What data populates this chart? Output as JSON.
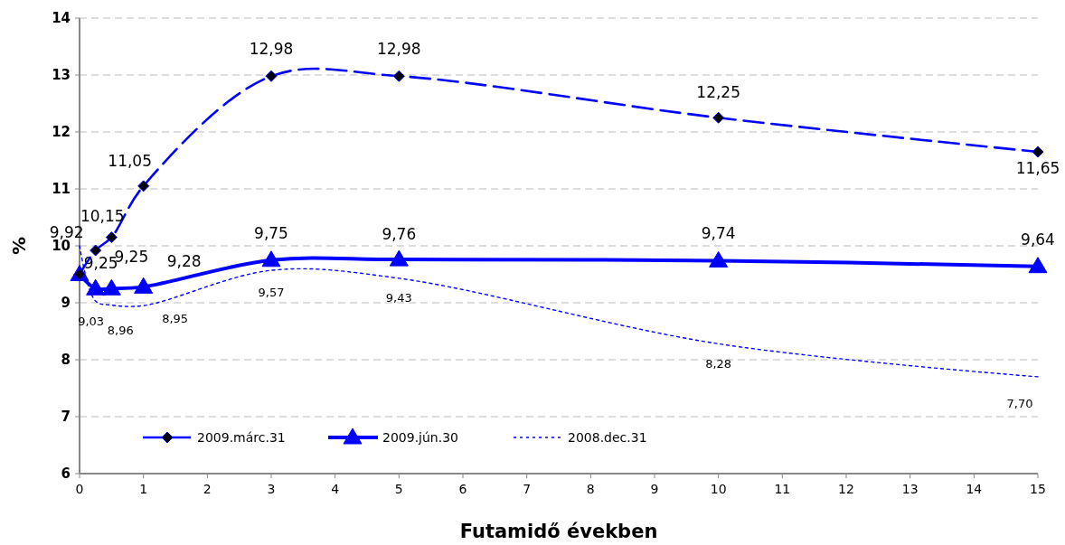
{
  "chart_data": {
    "type": "line",
    "xlabel": "Futamidő években",
    "ylabel": "%",
    "x": [
      0,
      0.25,
      0.5,
      1,
      3,
      5,
      10,
      15
    ],
    "xlim": [
      0,
      15
    ],
    "xticks": [
      0,
      1,
      2,
      3,
      4,
      5,
      6,
      7,
      8,
      9,
      10,
      11,
      12,
      13,
      14,
      15
    ],
    "ylim": [
      6,
      14
    ],
    "yticks": [
      6,
      7,
      8,
      9,
      10,
      11,
      12,
      13,
      14
    ],
    "grid": "y",
    "legend": "bottom left",
    "series": [
      {
        "name": "2009.márc.31",
        "color": "#0000ff",
        "marker": "diamond",
        "line_style": "dashed",
        "values": [
          9.5,
          9.92,
          10.15,
          11.05,
          12.98,
          12.98,
          12.25,
          11.65
        ],
        "value_labels": [
          null,
          "9,92",
          "10,15",
          "11,05",
          "12,98",
          "12,98",
          "12,25",
          "11,65"
        ]
      },
      {
        "name": "2009.jún.30",
        "color": "#0000ff",
        "marker": "triangle",
        "line_style": "solid",
        "values": [
          9.5,
          9.25,
          9.25,
          9.28,
          9.75,
          9.76,
          9.74,
          9.64
        ],
        "value_labels": [
          null,
          "9,25",
          "9,25",
          "9,28",
          "9,75",
          "9,76",
          "9,74",
          "9,64"
        ]
      },
      {
        "name": "2008.dec.31",
        "color": "#0000ff",
        "marker": "none",
        "line_style": "dotted",
        "values": [
          10.0,
          9.03,
          8.96,
          8.95,
          9.57,
          9.43,
          8.28,
          7.7
        ],
        "value_labels": [
          null,
          "9,03",
          "8,96",
          "8,95",
          "9,57",
          "9,43",
          "8,28",
          "7,70"
        ]
      }
    ]
  }
}
